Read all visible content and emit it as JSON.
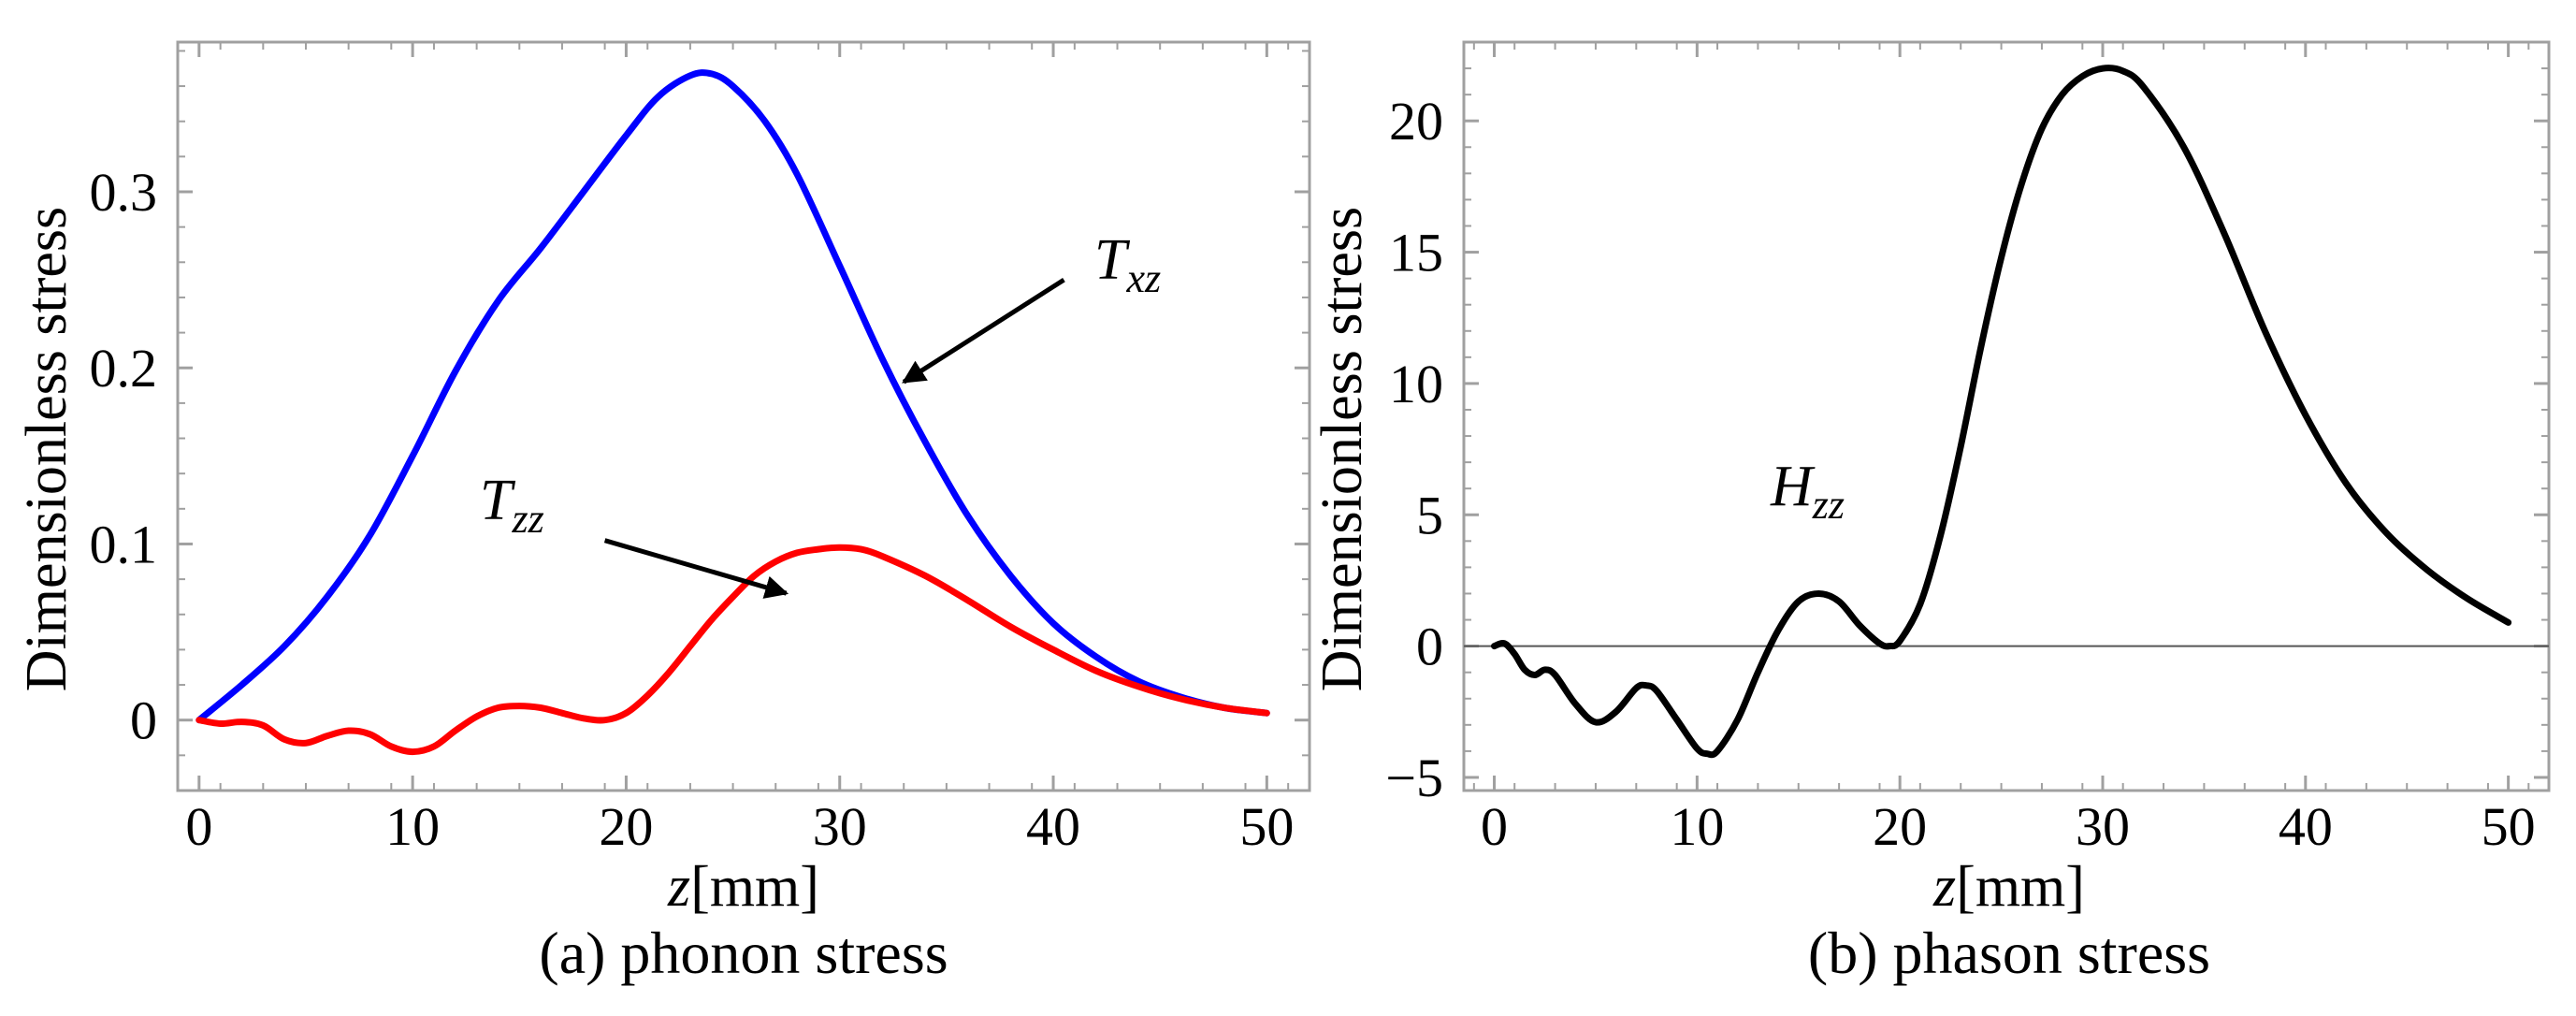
{
  "figure": {
    "captions": [
      "(a) phonon stress",
      "(b) phason stress"
    ]
  },
  "colors": {
    "txz": "#0000ff",
    "tzz": "#ff0000",
    "hzz": "#000000",
    "frame": "#a0a0a0"
  },
  "chart_data": [
    {
      "type": "line",
      "caption": "(a) phonon stress",
      "xlabel_var": "z",
      "xlabel_unit": "[mm]",
      "ylabel": "Dimensionless stress",
      "xlim": [
        -1,
        52
      ],
      "ylim": [
        -0.04,
        0.385
      ],
      "xticks": [
        0,
        10,
        20,
        30,
        40,
        50
      ],
      "yticks": [
        0,
        0.1,
        0.2,
        0.3
      ],
      "ytick_labels": [
        "0",
        "0.1",
        "0.2",
        "0.3"
      ],
      "series": [
        {
          "name": "Txz",
          "label_main": "T",
          "label_sub": "xz",
          "color": "#0000ff",
          "points": [
            [
              0,
              0
            ],
            [
              2,
              0.02
            ],
            [
              4,
              0.042
            ],
            [
              6,
              0.07
            ],
            [
              8,
              0.105
            ],
            [
              10,
              0.15
            ],
            [
              12,
              0.198
            ],
            [
              14,
              0.238
            ],
            [
              16,
              0.268
            ],
            [
              18,
              0.3
            ],
            [
              20,
              0.332
            ],
            [
              21.5,
              0.354
            ],
            [
              23,
              0.366
            ],
            [
              24,
              0.367
            ],
            [
              25,
              0.36
            ],
            [
              26.5,
              0.34
            ],
            [
              28,
              0.31
            ],
            [
              30,
              0.258
            ],
            [
              32,
              0.205
            ],
            [
              34,
              0.158
            ],
            [
              36,
              0.116
            ],
            [
              38,
              0.082
            ],
            [
              40,
              0.055
            ],
            [
              42,
              0.036
            ],
            [
              44,
              0.022
            ],
            [
              46,
              0.013
            ],
            [
              48,
              0.007
            ],
            [
              50,
              0.004
            ]
          ]
        },
        {
          "name": "Tzz",
          "label_main": "T",
          "label_sub": "zz",
          "color": "#ff0000",
          "points": [
            [
              0,
              0
            ],
            [
              1,
              -0.002
            ],
            [
              2,
              -0.001
            ],
            [
              3,
              -0.003
            ],
            [
              4,
              -0.011
            ],
            [
              5,
              -0.013
            ],
            [
              6,
              -0.009
            ],
            [
              7,
              -0.006
            ],
            [
              8,
              -0.008
            ],
            [
              9,
              -0.015
            ],
            [
              10,
              -0.018
            ],
            [
              11,
              -0.015
            ],
            [
              12,
              -0.006
            ],
            [
              13,
              0.002
            ],
            [
              14,
              0.007
            ],
            [
              15,
              0.008
            ],
            [
              16,
              0.007
            ],
            [
              17,
              0.004
            ],
            [
              18,
              0.001
            ],
            [
              19,
              0
            ],
            [
              20,
              0.004
            ],
            [
              21,
              0.014
            ],
            [
              22,
              0.027
            ],
            [
              23,
              0.042
            ],
            [
              24,
              0.057
            ],
            [
              25,
              0.07
            ],
            [
              26,
              0.082
            ],
            [
              27,
              0.09
            ],
            [
              28,
              0.095
            ],
            [
              29,
              0.097
            ],
            [
              30,
              0.098
            ],
            [
              31,
              0.097
            ],
            [
              32,
              0.093
            ],
            [
              34,
              0.082
            ],
            [
              36,
              0.068
            ],
            [
              38,
              0.053
            ],
            [
              40,
              0.04
            ],
            [
              42,
              0.028
            ],
            [
              44,
              0.019
            ],
            [
              46,
              0.012
            ],
            [
              48,
              0.007
            ],
            [
              50,
              0.004
            ]
          ]
        }
      ],
      "annotations": [
        {
          "target": "Txz",
          "label": "Txz",
          "arrow_from": [
            40.5,
            0.25
          ],
          "arrow_to": [
            33,
            0.192
          ]
        },
        {
          "target": "Tzz",
          "label": "Tzz",
          "arrow_from": [
            19,
            0.102
          ],
          "arrow_to": [
            27.5,
            0.072
          ]
        }
      ]
    },
    {
      "type": "line",
      "caption": "(b) phason stress",
      "xlabel_var": "z",
      "xlabel_unit": "[mm]",
      "ylabel": "Dimensionless stress",
      "xlim": [
        -1.5,
        52
      ],
      "ylim": [
        -5.5,
        23
      ],
      "xticks": [
        0,
        10,
        20,
        30,
        40,
        50
      ],
      "yticks": [
        -5,
        0,
        5,
        10,
        15,
        20
      ],
      "ytick_labels": [
        "−5",
        "0",
        "5",
        "10",
        "15",
        "20"
      ],
      "zero_line": true,
      "series": [
        {
          "name": "Hzz",
          "label_main": "H",
          "label_sub": "zz",
          "color": "#000000",
          "points": [
            [
              0,
              0
            ],
            [
              0.5,
              0.1
            ],
            [
              1,
              -0.3
            ],
            [
              1.5,
              -0.9
            ],
            [
              2,
              -1.1
            ],
            [
              2.5,
              -0.9
            ],
            [
              3,
              -1.1
            ],
            [
              4,
              -2.2
            ],
            [
              5,
              -2.9
            ],
            [
              6,
              -2.5
            ],
            [
              7,
              -1.6
            ],
            [
              7.5,
              -1.5
            ],
            [
              8,
              -1.7
            ],
            [
              9,
              -2.8
            ],
            [
              10,
              -3.9
            ],
            [
              10.5,
              -4.1
            ],
            [
              11,
              -4.0
            ],
            [
              12,
              -2.8
            ],
            [
              13,
              -1.0
            ],
            [
              14,
              0.6
            ],
            [
              15,
              1.7
            ],
            [
              16,
              2.0
            ],
            [
              17,
              1.7
            ],
            [
              18,
              0.8
            ],
            [
              19,
              0.1
            ],
            [
              19.5,
              0
            ],
            [
              20,
              0.2
            ],
            [
              21,
              1.6
            ],
            [
              22,
              4.2
            ],
            [
              23,
              7.6
            ],
            [
              24,
              11.4
            ],
            [
              25,
              14.8
            ],
            [
              26,
              17.6
            ],
            [
              27,
              19.7
            ],
            [
              28,
              21.0
            ],
            [
              29,
              21.7
            ],
            [
              30,
              22.0
            ],
            [
              31,
              21.9
            ],
            [
              32,
              21.3
            ],
            [
              34,
              19.0
            ],
            [
              36,
              15.7
            ],
            [
              38,
              12.0
            ],
            [
              40,
              8.8
            ],
            [
              42,
              6.2
            ],
            [
              44,
              4.3
            ],
            [
              46,
              2.9
            ],
            [
              48,
              1.8
            ],
            [
              50,
              0.9
            ]
          ]
        }
      ],
      "annotations": [
        {
          "target": "Hzz",
          "label": "Hzz",
          "arrow_from": null,
          "arrow_to": null
        }
      ]
    }
  ]
}
